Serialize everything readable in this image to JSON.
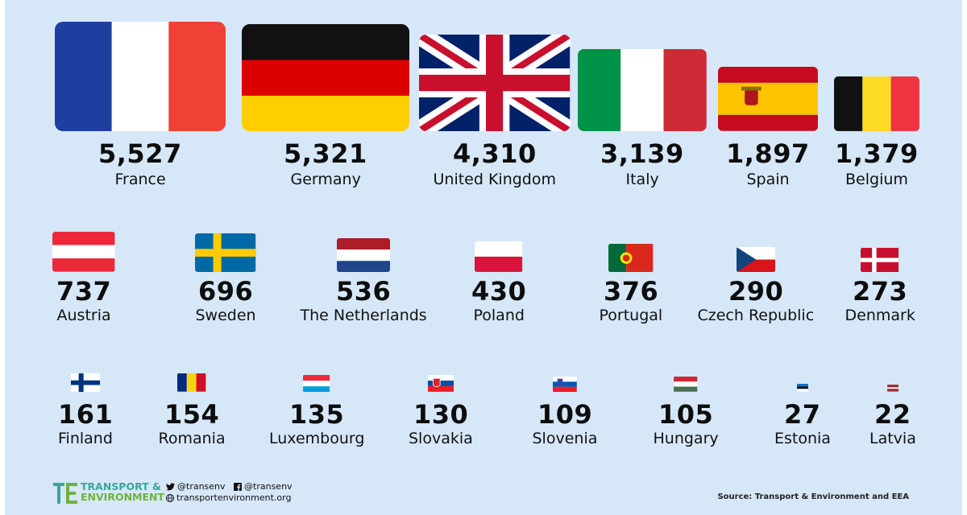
{
  "chart_data": {
    "type": "table",
    "rows": [
      {
        "country": "France",
        "value": "5,527",
        "flag": "france"
      },
      {
        "country": "Germany",
        "value": "5,321",
        "flag": "germany"
      },
      {
        "country": "United Kingdom",
        "value": "4,310",
        "flag": "uk"
      },
      {
        "country": "Italy",
        "value": "3,139",
        "flag": "italy"
      },
      {
        "country": "Spain",
        "value": "1,897",
        "flag": "spain"
      },
      {
        "country": "Belgium",
        "value": "1,379",
        "flag": "belgium"
      },
      {
        "country": "Austria",
        "value": "737",
        "flag": "austria"
      },
      {
        "country": "Sweden",
        "value": "696",
        "flag": "sweden"
      },
      {
        "country": "The Netherlands",
        "value": "536",
        "flag": "netherlands"
      },
      {
        "country": "Poland",
        "value": "430",
        "flag": "poland"
      },
      {
        "country": "Portugal",
        "value": "376",
        "flag": "portugal"
      },
      {
        "country": "Czech Republic",
        "value": "290",
        "flag": "czech"
      },
      {
        "country": "Denmark",
        "value": "273",
        "flag": "denmark"
      },
      {
        "country": "Finland",
        "value": "161",
        "flag": "finland"
      },
      {
        "country": "Romania",
        "value": "154",
        "flag": "romania"
      },
      {
        "country": "Luxembourg",
        "value": "135",
        "flag": "luxembourg"
      },
      {
        "country": "Slovakia",
        "value": "130",
        "flag": "slovakia"
      },
      {
        "country": "Slovenia",
        "value": "109",
        "flag": "slovenia"
      },
      {
        "country": "Hungary",
        "value": "105",
        "flag": "hungary"
      },
      {
        "country": "Estonia",
        "value": "27",
        "flag": "estonia"
      },
      {
        "country": "Latvia",
        "value": "22",
        "flag": "latvia"
      }
    ],
    "numeric_values": [
      5527,
      5321,
      4310,
      3139,
      1897,
      1379,
      737,
      696,
      536,
      430,
      376,
      290,
      273,
      161,
      154,
      135,
      130,
      109,
      105,
      27,
      22
    ],
    "encoding": "flag area scales with value"
  },
  "footer": {
    "logo_line1": "TRANSPORT &",
    "logo_line2": "ENVIRONMENT",
    "twitter": "@transenv",
    "facebook": "@transenv",
    "website": "transportenvironment.org",
    "source": "Source: Transport & Environment and EEA"
  },
  "colors": {
    "background": "#d6e7f8",
    "logo_teal": "#3aa69b",
    "logo_green": "#6db33f"
  }
}
